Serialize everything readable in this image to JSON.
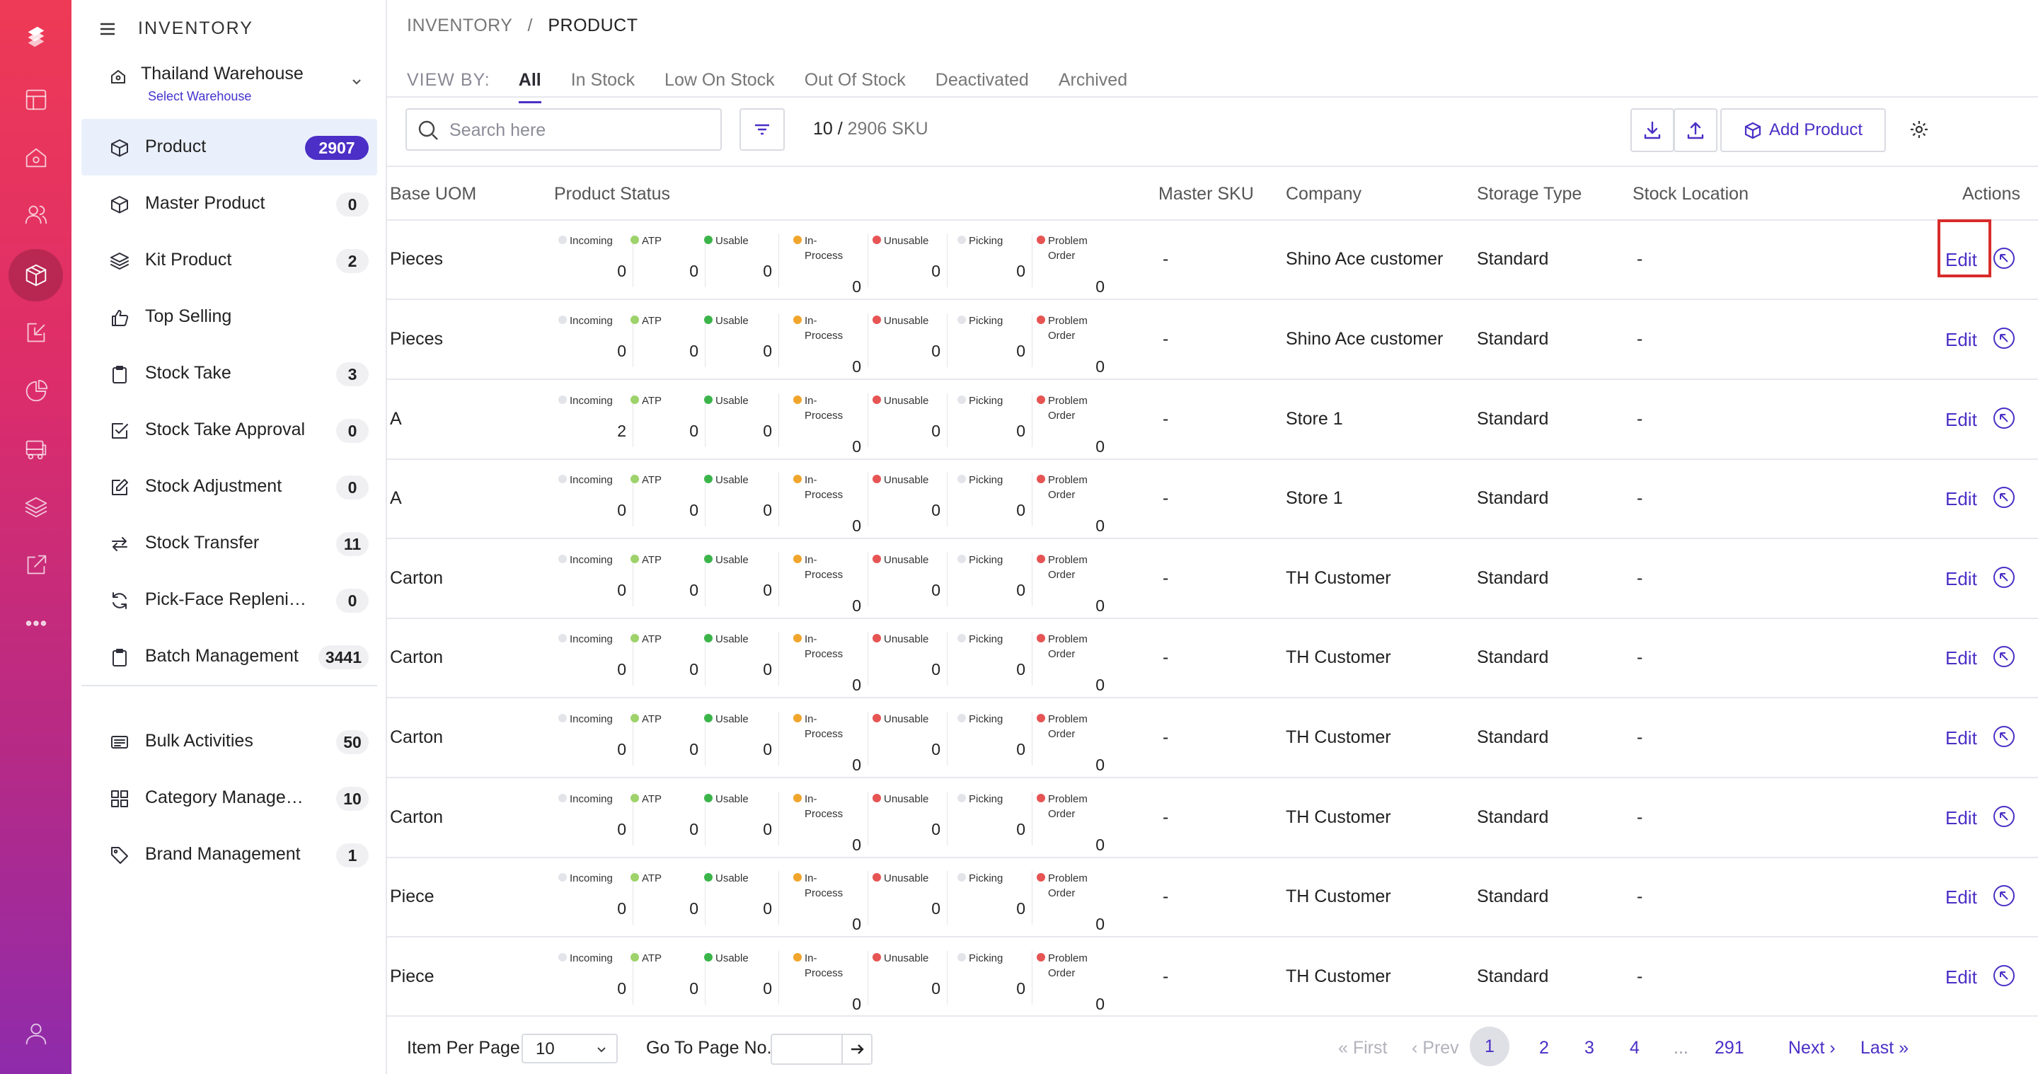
{
  "app": {
    "module_title": "INVENTORY"
  },
  "warehouse": {
    "name": "Thailand Warehouse",
    "sub_label": "Select Warehouse"
  },
  "sidebar": {
    "items": [
      {
        "label": "Product",
        "count": "2907",
        "icon": "cube-icon",
        "active": true
      },
      {
        "label": "Master Product",
        "count": "0",
        "icon": "cube-icon"
      },
      {
        "label": "Kit Product",
        "count": "2",
        "icon": "layers-icon"
      },
      {
        "label": "Top Selling",
        "count": "",
        "icon": "thumbs-up-icon"
      },
      {
        "label": "Stock Take",
        "count": "3",
        "icon": "clipboard-icon"
      },
      {
        "label": "Stock Take Approval",
        "count": "0",
        "icon": "check-square-icon"
      },
      {
        "label": "Stock Adjustment",
        "count": "0",
        "icon": "edit-square-icon"
      },
      {
        "label": "Stock Transfer",
        "count": "11",
        "icon": "transfer-arrows-icon"
      },
      {
        "label": "Pick-Face Replenish...",
        "count": "0",
        "icon": "refresh-icon"
      },
      {
        "label": "Batch Management",
        "count": "3441",
        "icon": "clipboard-icon"
      },
      {
        "label": "Bulk Activities",
        "count": "50",
        "icon": "list-box-icon"
      },
      {
        "label": "Category Managem...",
        "count": "10",
        "icon": "grid-icon"
      },
      {
        "label": "Brand Management",
        "count": "1",
        "icon": "tag-icon"
      }
    ]
  },
  "breadcrumb": {
    "parent": "INVENTORY",
    "separator": "/",
    "current": "PRODUCT"
  },
  "view_by": {
    "label": "VIEW BY:",
    "tabs": [
      "All",
      "In Stock",
      "Low On Stock",
      "Out Of Stock",
      "Deactivated",
      "Archived"
    ],
    "active": "All"
  },
  "toolbar": {
    "search_placeholder": "Search here",
    "shown": "10 /",
    "total": "2906 SKU",
    "add_label": "Add Product"
  },
  "table": {
    "columns": [
      "Base UOM",
      "Product Status",
      "Master SKU",
      "Company",
      "Storage Type",
      "Stock Location",
      "Actions"
    ],
    "status_fields": [
      {
        "label": "Incoming",
        "color": "#e3e4ea"
      },
      {
        "label": "ATP",
        "color": "#9ed26a"
      },
      {
        "label": "Usable",
        "color": "#3bb54a"
      },
      {
        "label": "In-Process",
        "color": "#f0a52c"
      },
      {
        "label": "Unusable",
        "color": "#e65454"
      },
      {
        "label": "Picking",
        "color": "#e3e4ea"
      },
      {
        "label": "Problem Order",
        "color": "#e65454"
      }
    ],
    "edit_label": "Edit",
    "rows": [
      {
        "uom": "Pieces",
        "status": [
          "0",
          "0",
          "0",
          "0",
          "0",
          "0",
          "0"
        ],
        "master_sku": "-",
        "company": "Shino Ace customer",
        "storage": "Standard",
        "location": "-"
      },
      {
        "uom": "Pieces",
        "status": [
          "0",
          "0",
          "0",
          "0",
          "0",
          "0",
          "0"
        ],
        "master_sku": "-",
        "company": "Shino Ace customer",
        "storage": "Standard",
        "location": "-"
      },
      {
        "uom": "A",
        "status": [
          "2",
          "0",
          "0",
          "0",
          "0",
          "0",
          "0"
        ],
        "master_sku": "-",
        "company": "Store 1",
        "storage": "Standard",
        "location": "-"
      },
      {
        "uom": "A",
        "status": [
          "0",
          "0",
          "0",
          "0",
          "0",
          "0",
          "0"
        ],
        "master_sku": "-",
        "company": "Store 1",
        "storage": "Standard",
        "location": "-"
      },
      {
        "uom": "Carton",
        "status": [
          "0",
          "0",
          "0",
          "0",
          "0",
          "0",
          "0"
        ],
        "master_sku": "-",
        "company": "TH Customer",
        "storage": "Standard",
        "location": "-"
      },
      {
        "uom": "Carton",
        "status": [
          "0",
          "0",
          "0",
          "0",
          "0",
          "0",
          "0"
        ],
        "master_sku": "-",
        "company": "TH Customer",
        "storage": "Standard",
        "location": "-"
      },
      {
        "uom": "Carton",
        "status": [
          "0",
          "0",
          "0",
          "0",
          "0",
          "0",
          "0"
        ],
        "master_sku": "-",
        "company": "TH Customer",
        "storage": "Standard",
        "location": "-"
      },
      {
        "uom": "Carton",
        "status": [
          "0",
          "0",
          "0",
          "0",
          "0",
          "0",
          "0"
        ],
        "master_sku": "-",
        "company": "TH Customer",
        "storage": "Standard",
        "location": "-"
      },
      {
        "uom": "Piece",
        "status": [
          "0",
          "0",
          "0",
          "0",
          "0",
          "0",
          "0"
        ],
        "master_sku": "-",
        "company": "TH Customer",
        "storage": "Standard",
        "location": "-"
      },
      {
        "uom": "Piece",
        "status": [
          "0",
          "0",
          "0",
          "0",
          "0",
          "0",
          "0"
        ],
        "master_sku": "-",
        "company": "TH Customer",
        "storage": "Standard",
        "location": "-"
      }
    ]
  },
  "footer": {
    "item_per_page_label": "Item Per Page",
    "item_per_page_value": "10",
    "go_to_label": "Go To Page No.",
    "first": "First",
    "prev": "Prev",
    "pages": [
      "1",
      "2",
      "3",
      "4",
      "...",
      "291"
    ],
    "current_page": "1",
    "next": "Next",
    "last": "Last"
  },
  "colors": {
    "accent": "#4b2fc6",
    "rail_top": "#ee3a55",
    "rail_bottom": "#8f2bab",
    "highlight": "#d92b2b"
  }
}
